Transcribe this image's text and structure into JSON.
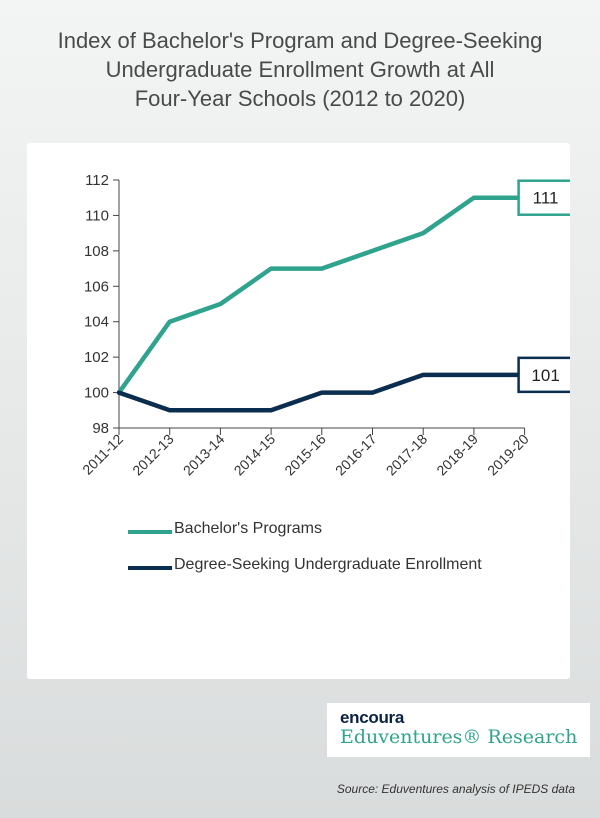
{
  "title_lines": [
    "Index of Bachelor's Program and Degree-Seeking",
    "Undergraduate Enrollment Growth at All",
    "Four-Year Schools (2012 to 2020)"
  ],
  "source": "Source: Eduventures analysis of IPEDS data",
  "brand": {
    "logo": "encoura",
    "name": "Eduventures® Research"
  },
  "colors": {
    "bachelors": "#2fa38d",
    "enrollment": "#0b2d4f",
    "axis": "#444444"
  },
  "chart_data": {
    "type": "line",
    "title": "Index of Bachelor's Program and Degree-Seeking Undergraduate Enrollment Growth at All Four-Year Schools (2012 to 2020)",
    "categories": [
      "2011-12",
      "2012-13",
      "2013-14",
      "2014-15",
      "2015-16",
      "2016-17",
      "2017-18",
      "2018-19",
      "2019-20"
    ],
    "series": [
      {
        "name": "Bachelor's Programs",
        "values": [
          100,
          104,
          105,
          107,
          107,
          108,
          109,
          111,
          111
        ],
        "end_label": "111"
      },
      {
        "name": "Degree-Seeking Undergraduate Enrollment",
        "values": [
          100,
          99,
          99,
          99,
          100,
          100,
          101,
          101,
          101
        ],
        "end_label": "101"
      }
    ],
    "ylim": [
      98,
      112
    ],
    "yticks": [
      98,
      100,
      102,
      104,
      106,
      108,
      110,
      112
    ],
    "grid": false,
    "legend_position": "bottom"
  }
}
